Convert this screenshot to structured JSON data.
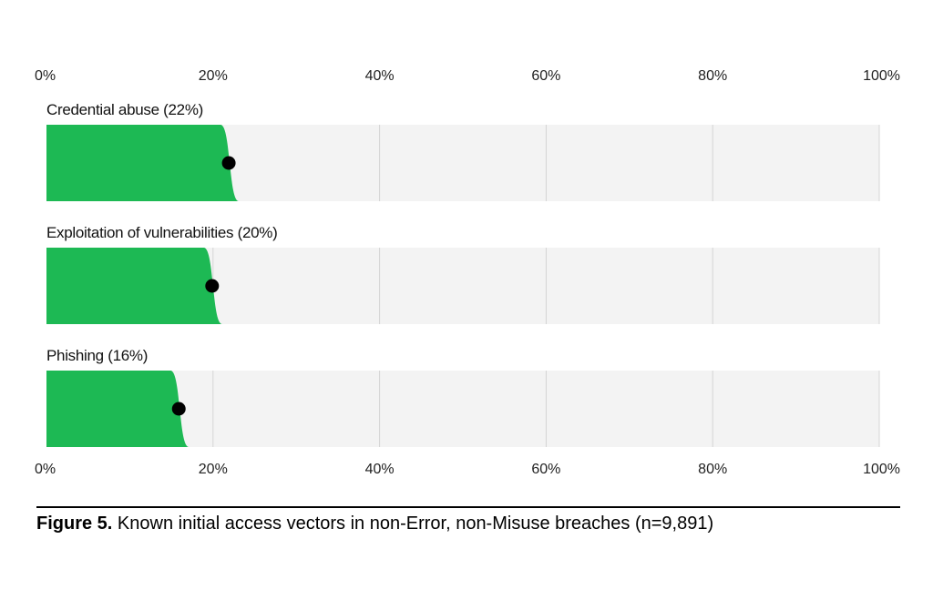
{
  "chart_data": {
    "type": "bar",
    "orientation": "horizontal",
    "categories": [
      "Credential abuse (22%)",
      "Exploitation of vulnerabilities (20%)",
      "Phishing (16%)"
    ],
    "values": [
      22,
      20,
      16
    ],
    "xlim": [
      0,
      100
    ],
    "xticks": [
      "0%",
      "20%",
      "40%",
      "60%",
      "80%",
      "100%"
    ],
    "grid": true,
    "colors": {
      "bar": "#1db954",
      "track": "#f3f3f3",
      "grid": "#d4d4d4",
      "point": "#000000"
    }
  },
  "caption": {
    "label": "Figure 5.",
    "text": "Known initial access vectors in non-Error, non-Misuse breaches (n=9,891)"
  }
}
